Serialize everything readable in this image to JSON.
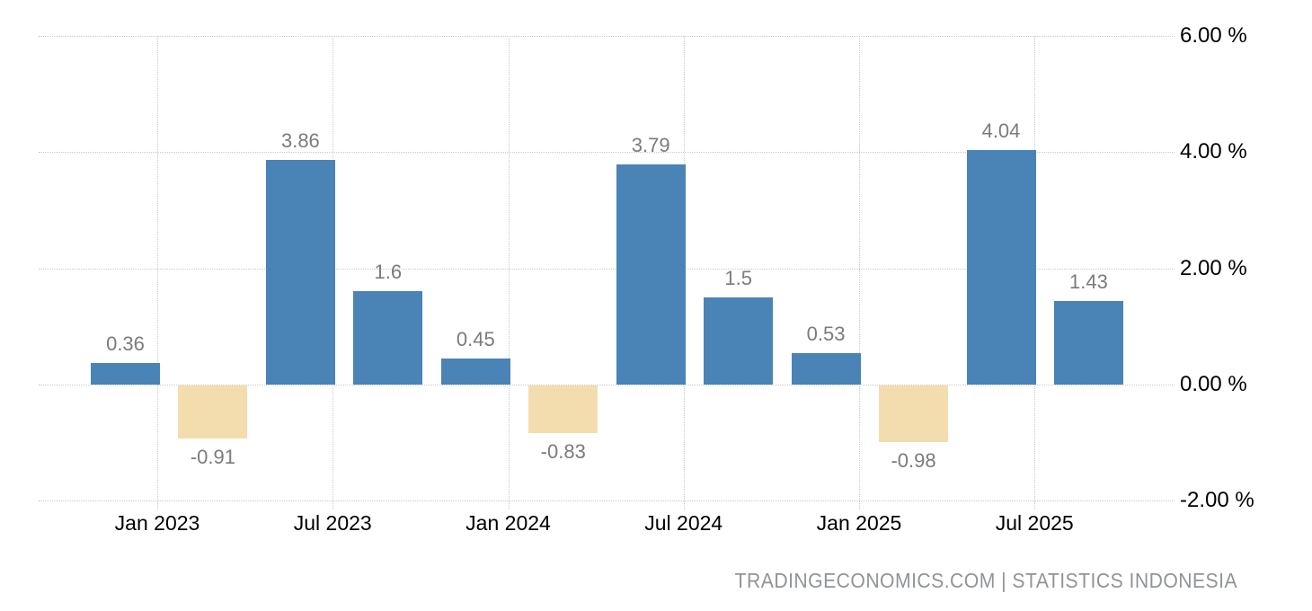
{
  "chart_data": {
    "type": "bar",
    "title": "",
    "ylabel": "",
    "xlabel": "",
    "unit": "%",
    "bars": [
      {
        "value": 0.36,
        "label": "0.36"
      },
      {
        "value": -0.91,
        "label": "-0.91"
      },
      {
        "value": 3.86,
        "label": "3.86"
      },
      {
        "value": 1.6,
        "label": "1.6"
      },
      {
        "value": 0.45,
        "label": "0.45"
      },
      {
        "value": -0.83,
        "label": "-0.83"
      },
      {
        "value": 3.79,
        "label": "3.79"
      },
      {
        "value": 1.5,
        "label": "1.5"
      },
      {
        "value": 0.53,
        "label": "0.53"
      },
      {
        "value": -0.98,
        "label": "-0.98"
      },
      {
        "value": 4.04,
        "label": "4.04"
      },
      {
        "value": 1.43,
        "label": "1.43"
      }
    ],
    "x_tick_labels": [
      "Jan 2023",
      "Jul 2023",
      "Jan 2024",
      "Jul 2024",
      "Jan 2025",
      "Jul 2025"
    ],
    "y_tick_labels": [
      "6.00 %",
      "4.00 %",
      "2.00 %",
      "0.00 %",
      "-2.00 %"
    ],
    "y_tick_values": [
      6,
      4,
      2,
      0,
      -2
    ],
    "ylim": [
      -2,
      6
    ],
    "grid": "dotted",
    "legend": "none",
    "colors": {
      "positive_bar": "#4a83b5",
      "negative_bar": "#f3ddaf",
      "gridline": "#c9c9c9",
      "value_label": "#7b7b7b",
      "axis_label": "#000000",
      "attribution": "#909497"
    },
    "attribution": "TRADINGECONOMICS.COM | STATISTICS INDONESIA"
  }
}
